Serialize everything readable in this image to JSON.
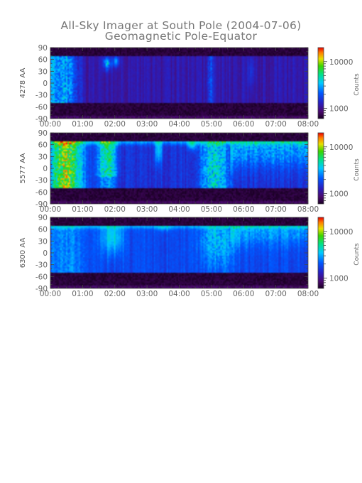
{
  "title": "All-Sky Imager at South Pole (2004-07-06)",
  "subtitle": "Geomagnetic Pole-Equator",
  "chart_data": [
    {
      "type": "heatmap",
      "ylabel": "4278 AA",
      "colorbar_label": "Counts",
      "colorbar_ticks": [
        "10000",
        "1000"
      ],
      "x_ticks": [
        "00:00",
        "01:00",
        "02:00",
        "03:00",
        "04:00",
        "05:00",
        "06:00",
        "07:00",
        "08:00"
      ],
      "y_ticks": [
        "90",
        "60",
        "30",
        "0",
        "-30",
        "-60",
        "-90"
      ],
      "xlim": [
        "00:00",
        "08:00"
      ],
      "ylim": [
        -90,
        90
      ],
      "colorscale": "rainbow",
      "grid": false
    },
    {
      "type": "heatmap",
      "ylabel": "5577 AA",
      "colorbar_label": "Counts",
      "colorbar_ticks": [
        "10000",
        "1000"
      ],
      "x_ticks": [
        "00:00",
        "01:00",
        "02:00",
        "03:00",
        "04:00",
        "05:00",
        "06:00",
        "07:00",
        "08:00"
      ],
      "y_ticks": [
        "90",
        "60",
        "30",
        "0",
        "-30",
        "-60",
        "-90"
      ],
      "xlim": [
        "00:00",
        "08:00"
      ],
      "ylim": [
        -90,
        90
      ],
      "colorscale": "rainbow",
      "grid": false
    },
    {
      "type": "heatmap",
      "ylabel": "6300 AA",
      "colorbar_label": "Counts",
      "colorbar_ticks": [
        "10000",
        "1000"
      ],
      "x_ticks": [
        "00:00",
        "01:00",
        "02:00",
        "03:00",
        "04:00",
        "05:00",
        "06:00",
        "07:00",
        "08:00"
      ],
      "y_ticks": [
        "90",
        "60",
        "30",
        "0",
        "-30",
        "-60",
        "-90"
      ],
      "xlim": [
        "00:00",
        "08:00"
      ],
      "ylim": [
        -90,
        90
      ],
      "colorscale": "rainbow",
      "grid": false
    }
  ]
}
